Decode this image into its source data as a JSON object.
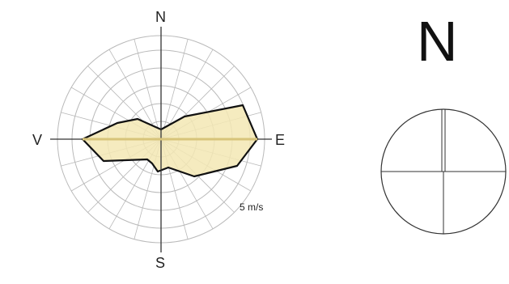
{
  "wind_rose": {
    "labels": {
      "north": "N",
      "south": "S",
      "east": "E",
      "west": "V"
    },
    "speed_label": "5 m/s",
    "fill_color": "#f3e7b4",
    "outline_color": "#111111",
    "grid_color": "#b9b9b9"
  },
  "compass": {
    "label": "N",
    "line_color": "#333333"
  }
}
